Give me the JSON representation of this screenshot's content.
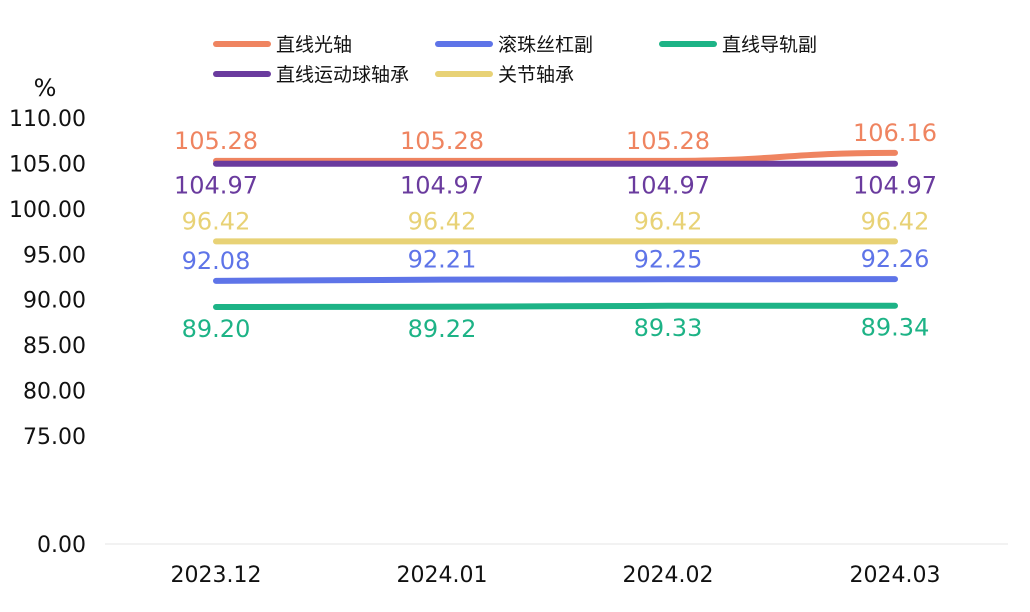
{
  "chart_data": {
    "type": "line",
    "unit_label": "%",
    "categories": [
      "2023.12",
      "2024.01",
      "2024.02",
      "2024.03"
    ],
    "y_ticks": [
      "0.00",
      "75.00",
      "80.00",
      "85.00",
      "90.00",
      "95.00",
      "100.00",
      "105.00",
      "110.00"
    ],
    "y_axis_break": {
      "from": 0,
      "to": 75
    },
    "ylim": [
      75,
      110
    ],
    "grid": false,
    "legend_position": "top",
    "series": [
      {
        "name": "直线光轴",
        "color": "#EF8460",
        "values": [
          105.28,
          105.28,
          105.28,
          106.16
        ],
        "labels": [
          "105.28",
          "105.28",
          "105.28",
          "106.16"
        ],
        "label_side": "above"
      },
      {
        "name": "滚珠丝杠副",
        "color": "#5E74E8",
        "values": [
          92.08,
          92.21,
          92.25,
          92.26
        ],
        "labels": [
          "92.08",
          "92.21",
          "92.25",
          "92.26"
        ],
        "label_side": "above"
      },
      {
        "name": "直线导轨副",
        "color": "#1DB386",
        "values": [
          89.2,
          89.22,
          89.33,
          89.34
        ],
        "labels": [
          "89.20",
          "89.22",
          "89.33",
          "89.34"
        ],
        "label_side": "below"
      },
      {
        "name": "直线运动球轴承",
        "color": "#6A3B9E",
        "values": [
          104.97,
          104.97,
          104.97,
          104.97
        ],
        "labels": [
          "104.97",
          "104.97",
          "104.97",
          "104.97"
        ],
        "label_side": "below"
      },
      {
        "name": "关节轴承",
        "color": "#E8D276",
        "values": [
          96.42,
          96.42,
          96.42,
          96.42
        ],
        "labels": [
          "96.42",
          "96.42",
          "96.42",
          "96.42"
        ],
        "label_side": "above"
      }
    ]
  }
}
